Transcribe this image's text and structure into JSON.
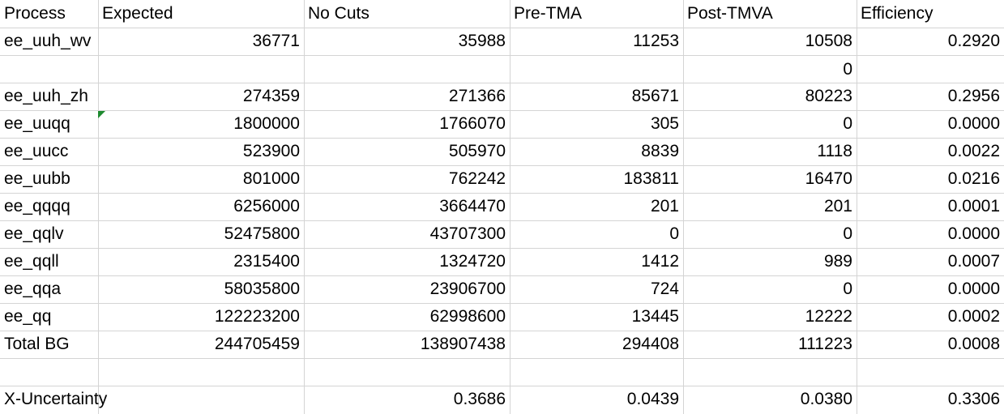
{
  "header": [
    "Process",
    "Expected",
    "No Cuts",
    "Pre-TMA",
    "Post-TMVA",
    "Efficiency"
  ],
  "rows": [
    [
      "ee_uuh_wv",
      "36771",
      "35988",
      "11253",
      "10508",
      "0.2920"
    ],
    [
      "",
      "",
      "",
      "",
      "0",
      ""
    ],
    [
      "ee_uuh_zh",
      "274359",
      "271366",
      "85671",
      "80223",
      "0.2956"
    ],
    [
      "ee_uuqq",
      "1800000",
      "1766070",
      "305",
      "0",
      "0.0000"
    ],
    [
      "ee_uucc",
      "523900",
      "505970",
      "8839",
      "1118",
      "0.0022"
    ],
    [
      "ee_uubb",
      "801000",
      "762242",
      "183811",
      "16470",
      "0.0216"
    ],
    [
      "ee_qqqq",
      "6256000",
      "3664470",
      "201",
      "201",
      "0.0001"
    ],
    [
      "ee_qqlv",
      "52475800",
      "43707300",
      "0",
      "0",
      "0.0000"
    ],
    [
      "ee_qqll",
      "2315400",
      "1324720",
      "1412",
      "989",
      "0.0007"
    ],
    [
      "ee_qqa",
      "58035800",
      "23906700",
      "724",
      "0",
      "0.0000"
    ],
    [
      "ee_qq",
      "122223200",
      "62998600",
      "13445",
      "12222",
      "0.0002"
    ],
    [
      "Total BG",
      "244705459",
      "138907438",
      "294408",
      "111223",
      "0.0008"
    ],
    [
      "",
      "",
      "",
      "",
      "",
      ""
    ]
  ],
  "footer": [
    "X-Uncertainty",
    "",
    "0.3686",
    "0.0439",
    "0.0380",
    "0.3306"
  ]
}
